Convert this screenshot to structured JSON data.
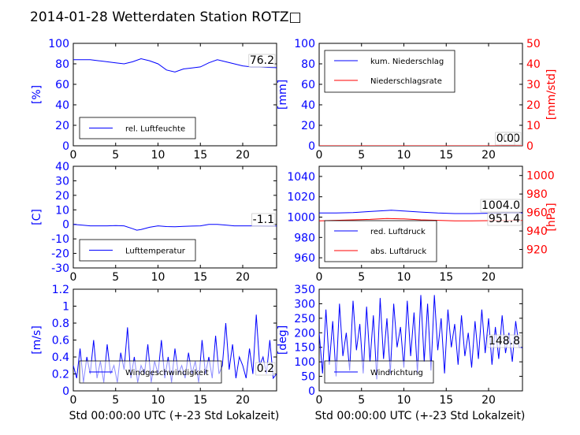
{
  "title": "2014-01-28 Wetterdaten Station ROTZ□",
  "xlabel": "Std 00:00:00 UTC (+-23 Std Lokalzeit)",
  "colors": {
    "left_axis": "#0000ff",
    "right_axis": "#ff0000",
    "series_blue": "#0000ff",
    "series_red": "#ff0000"
  },
  "chart_data": [
    {
      "id": "humidity",
      "type": "line",
      "xlim": [
        0,
        24
      ],
      "xticks": [
        0,
        5,
        10,
        15,
        20
      ],
      "ylabel": "[%]",
      "ylim": [
        0,
        100
      ],
      "yticks": [
        0,
        20,
        40,
        60,
        80,
        100
      ],
      "legend": {
        "placement": "lower-left",
        "entries": [
          "rel. Luftfeuchte"
        ]
      },
      "value_labels": [
        "76.2"
      ],
      "series": [
        {
          "name": "rel. Luftfeuchte",
          "axis": "left",
          "color": "#0000ff",
          "x": [
            0,
            1,
            2,
            3,
            4,
            5,
            6,
            7,
            8,
            9,
            10,
            11,
            12,
            13,
            14,
            15,
            16,
            17,
            18,
            19,
            20,
            21,
            22,
            23,
            24
          ],
          "y": [
            84,
            84,
            84,
            83,
            82,
            81,
            80,
            82,
            85,
            83,
            80,
            74,
            72,
            75,
            76,
            77,
            81,
            84,
            82,
            80,
            78,
            77,
            77,
            76.5,
            76.2
          ]
        }
      ]
    },
    {
      "id": "precip",
      "type": "line",
      "xlim": [
        0,
        24
      ],
      "xticks": [
        0,
        5,
        10,
        15,
        20
      ],
      "ylabel": "[mm]",
      "ylim": [
        0,
        100
      ],
      "yticks": [
        0,
        20,
        40,
        60,
        80,
        100
      ],
      "ylabel_right": "[mm/std]",
      "ylim_right": [
        0,
        50
      ],
      "yticks_right": [
        0,
        10,
        20,
        30,
        40,
        50
      ],
      "legend": {
        "placement": "top-left",
        "entries": [
          "kum. Niederschlag",
          "Niederschlagsrate"
        ]
      },
      "value_labels": [
        "0.0",
        "0.0"
      ],
      "series": [
        {
          "name": "kum. Niederschlag",
          "axis": "left",
          "color": "#0000ff",
          "x": [
            0,
            24
          ],
          "y": [
            0,
            0
          ]
        },
        {
          "name": "Niederschlagsrate",
          "axis": "right",
          "color": "#ff0000",
          "x": [
            0,
            24
          ],
          "y": [
            0,
            0
          ]
        }
      ]
    },
    {
      "id": "temperature",
      "type": "line",
      "xlim": [
        0,
        24
      ],
      "xticks": [
        0,
        5,
        10,
        15,
        20
      ],
      "ylabel": "[C]",
      "ylim": [
        -30,
        40
      ],
      "yticks": [
        -30,
        -20,
        -10,
        0,
        10,
        20,
        30,
        40
      ],
      "legend": {
        "placement": "lower-left",
        "entries": [
          "Lufttemperatur"
        ]
      },
      "value_labels": [
        "-1.1"
      ],
      "series": [
        {
          "name": "Lufttemperatur",
          "axis": "left",
          "color": "#0000ff",
          "x": [
            0,
            1,
            2,
            3,
            4,
            5,
            6,
            7,
            7.5,
            8,
            9,
            10,
            11,
            12,
            13,
            14,
            15,
            16,
            17,
            18,
            19,
            20,
            21,
            22,
            23,
            24
          ],
          "y": [
            0,
            -0.5,
            -1,
            -1,
            -1,
            -0.8,
            -1,
            -3,
            -4,
            -3.5,
            -2,
            -1,
            -1.5,
            -1.6,
            -1.4,
            -1.2,
            -1,
            0,
            0,
            -0.5,
            -1,
            -1,
            -1,
            -1,
            -1.1,
            -1.1
          ]
        }
      ]
    },
    {
      "id": "pressure",
      "type": "line",
      "xlim": [
        0,
        24
      ],
      "xticks": [
        0,
        5,
        10,
        15,
        20
      ],
      "ylabel": "",
      "ylim": [
        950,
        1050
      ],
      "yticks": [
        960,
        980,
        1000,
        1020,
        1040
      ],
      "ylabel_right": "[hPa]",
      "ylim_right": [
        900,
        1010
      ],
      "yticks_right": [
        920,
        940,
        960,
        980,
        1000
      ],
      "legend": {
        "placement": "lower-left",
        "entries": [
          "red. Luftdruck",
          "abs. Luftdruck"
        ]
      },
      "value_labels": [
        "1004.0",
        "951.4"
      ],
      "series": [
        {
          "name": "red. Luftdruck",
          "axis": "left",
          "color": "#0000ff",
          "x": [
            0,
            2,
            4,
            6,
            8,
            8.5,
            10,
            12,
            14,
            16,
            18,
            20,
            22,
            24
          ],
          "y": [
            1004,
            1004,
            1004.5,
            1005.5,
            1006.5,
            1006.8,
            1006,
            1005,
            1004,
            1003.5,
            1003.5,
            1003.8,
            1004,
            1004
          ]
        },
        {
          "name": "abs. Luftdruck",
          "axis": "right",
          "color": "#ff0000",
          "x": [
            0,
            2,
            4,
            6,
            8,
            10,
            12,
            14,
            16,
            18,
            20,
            22,
            24
          ],
          "y": [
            951,
            951.5,
            952,
            952.5,
            953.5,
            953,
            952,
            951.5,
            951,
            951,
            951.2,
            951.3,
            951.4
          ]
        }
      ]
    },
    {
      "id": "windspeed",
      "type": "line",
      "xlim": [
        0,
        24
      ],
      "xticks": [
        0,
        5,
        10,
        15,
        20
      ],
      "ylabel": "[m/s]",
      "ylim": [
        0,
        1.2
      ],
      "yticks": [
        0.0,
        0.2,
        0.4,
        0.6,
        0.8,
        1.0,
        1.2
      ],
      "legend": {
        "placement": "lower-center",
        "entries": [
          "Windgeschwindigkeit"
        ]
      },
      "value_labels": [
        "0.2"
      ],
      "series": [
        {
          "name": "Windgeschwindigkeit",
          "axis": "left",
          "color": "#0000ff",
          "x": [
            0,
            0.4,
            0.8,
            1.2,
            1.6,
            2,
            2.4,
            2.8,
            3.2,
            3.6,
            4,
            4.4,
            4.8,
            5.2,
            5.6,
            6,
            6.4,
            6.8,
            7.2,
            7.6,
            8,
            8.4,
            8.8,
            9.2,
            9.6,
            10,
            10.4,
            10.8,
            11.2,
            11.6,
            12,
            12.4,
            12.8,
            13.2,
            13.6,
            14,
            14.4,
            14.8,
            15.2,
            15.6,
            16,
            16.4,
            16.8,
            17.2,
            17.6,
            18,
            18.4,
            18.8,
            19.2,
            19.6,
            20,
            20.4,
            20.8,
            21.2,
            21.6,
            22,
            22.4,
            22.8,
            23.2,
            23.6,
            24
          ],
          "y": [
            0.3,
            0.15,
            0.5,
            0.1,
            0.4,
            0.2,
            0.6,
            0.15,
            0.35,
            0.1,
            0.55,
            0.2,
            0.3,
            0.1,
            0.45,
            0.25,
            0.75,
            0.15,
            0.4,
            0.1,
            0.3,
            0.2,
            0.55,
            0.1,
            0.35,
            0.2,
            0.6,
            0.15,
            0.4,
            0.1,
            0.5,
            0.2,
            0.3,
            0.15,
            0.45,
            0.2,
            0.35,
            0.1,
            0.6,
            0.2,
            0.4,
            0.15,
            0.65,
            0.2,
            0.3,
            0.8,
            0.25,
            0.55,
            0.15,
            0.4,
            0.3,
            0.15,
            0.5,
            0.2,
            0.9,
            0.3,
            0.4,
            0.2,
            0.6,
            0.15,
            0.2
          ]
        }
      ]
    },
    {
      "id": "winddir",
      "type": "line",
      "xlim": [
        0,
        24
      ],
      "xticks": [
        0,
        5,
        10,
        15,
        20
      ],
      "ylabel": "[deg]",
      "ylim": [
        0,
        350
      ],
      "yticks": [
        0,
        50,
        100,
        150,
        200,
        250,
        300,
        350
      ],
      "legend": {
        "placement": "lower-center",
        "entries": [
          "Windrichtung"
        ]
      },
      "value_labels": [
        "148.8"
      ],
      "series": [
        {
          "name": "Windrichtung",
          "axis": "left",
          "color": "#0000ff",
          "x": [
            0,
            0.4,
            0.8,
            1.2,
            1.6,
            2,
            2.4,
            2.8,
            3.2,
            3.6,
            4,
            4.4,
            4.8,
            5.2,
            5.6,
            6,
            6.4,
            6.8,
            7.2,
            7.6,
            8,
            8.4,
            8.8,
            9.2,
            9.6,
            10,
            10.4,
            10.8,
            11.2,
            11.6,
            12,
            12.4,
            12.8,
            13.2,
            13.6,
            14,
            14.4,
            14.8,
            15.2,
            15.6,
            16,
            16.4,
            16.8,
            17.2,
            17.6,
            18,
            18.4,
            18.8,
            19.2,
            19.6,
            20,
            20.4,
            20.8,
            21.2,
            21.6,
            22,
            22.4,
            22.8,
            23.2,
            23.6,
            24
          ],
          "y": [
            200,
            60,
            280,
            90,
            240,
            50,
            300,
            120,
            200,
            70,
            310,
            140,
            230,
            60,
            290,
            100,
            260,
            40,
            320,
            110,
            250,
            60,
            300,
            150,
            220,
            80,
            310,
            120,
            270,
            60,
            330,
            100,
            300,
            70,
            330,
            140,
            250,
            60,
            280,
            150,
            230,
            90,
            260,
            120,
            200,
            80,
            240,
            110,
            280,
            130,
            250,
            90,
            220,
            110,
            260,
            130,
            200,
            100,
            240,
            150,
            148.8
          ]
        }
      ]
    }
  ]
}
